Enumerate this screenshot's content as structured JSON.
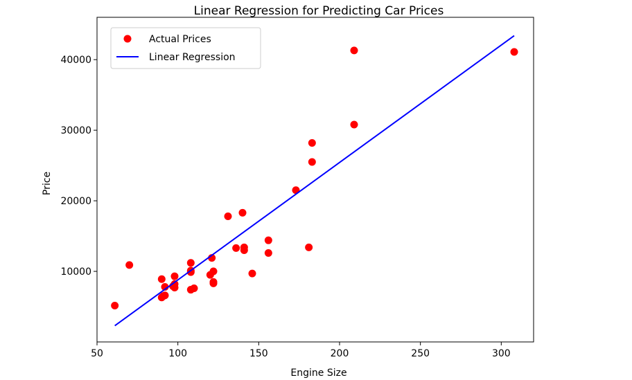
{
  "chart_data": {
    "type": "scatter",
    "title": "Linear Regression for Predicting Car Prices",
    "xlabel": "Engine Size",
    "ylabel": "Price",
    "xlim": [
      50,
      320
    ],
    "ylim": [
      0,
      46000
    ],
    "xticks": [
      50,
      100,
      150,
      200,
      250,
      300
    ],
    "yticks": [
      10000,
      20000,
      30000,
      40000
    ],
    "grid": false,
    "legend_position": "top-left",
    "series": [
      {
        "name": "Actual Prices",
        "kind": "scatter",
        "color": "#ff0000",
        "points": [
          [
            61,
            5150
          ],
          [
            70,
            10900
          ],
          [
            90,
            8900
          ],
          [
            90,
            6300
          ],
          [
            91,
            6500
          ],
          [
            92,
            6600
          ],
          [
            92,
            7800
          ],
          [
            97,
            7900
          ],
          [
            98,
            8200
          ],
          [
            98,
            9300
          ],
          [
            98,
            7700
          ],
          [
            108,
            11200
          ],
          [
            108,
            10100
          ],
          [
            108,
            9900
          ],
          [
            108,
            7400
          ],
          [
            110,
            7600
          ],
          [
            120,
            9500
          ],
          [
            121,
            11900
          ],
          [
            122,
            10000
          ],
          [
            122,
            8300
          ],
          [
            122,
            8500
          ],
          [
            131,
            17800
          ],
          [
            136,
            13300
          ],
          [
            140,
            18300
          ],
          [
            141,
            13400
          ],
          [
            141,
            13000
          ],
          [
            146,
            9700
          ],
          [
            156,
            14400
          ],
          [
            156,
            12600
          ],
          [
            173,
            21500
          ],
          [
            181,
            13400
          ],
          [
            183,
            28200
          ],
          [
            183,
            25500
          ],
          [
            209,
            41300
          ],
          [
            209,
            30800
          ],
          [
            308,
            41100
          ]
        ]
      },
      {
        "name": "Linear Regression",
        "kind": "line",
        "color": "#0000ff",
        "points": [
          [
            61,
            2300
          ],
          [
            308,
            43400
          ]
        ]
      }
    ]
  }
}
